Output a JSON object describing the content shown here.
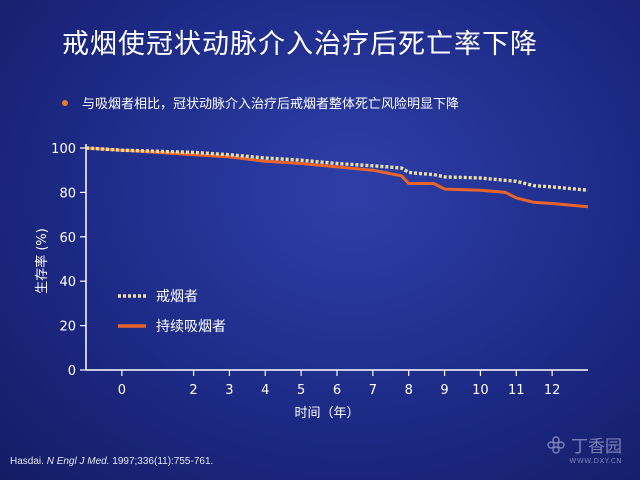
{
  "title": "戒烟使冠状动脉介入治疗后死亡率下降",
  "bullet": "与吸烟者相比，冠状动脉介入治疗后戒烟者整体死亡风险明显下降",
  "citation": {
    "author": "Hasdai.",
    "journal": "N Engl J Med.",
    "ref": "1997;336(11):755-761."
  },
  "watermark": {
    "name": "丁香园",
    "url": "WWW.DXY.CN"
  },
  "colors": {
    "quit": "#e9dfa8",
    "smoke": "#e8642c",
    "axis": "#ffffff"
  },
  "chart_data": {
    "type": "line",
    "xlabel": "时间（年）",
    "ylabel": "生存率 (%)",
    "xlim": [
      -1,
      13
    ],
    "ylim": [
      0,
      100
    ],
    "xticks": [
      0,
      2,
      3,
      4,
      5,
      6,
      7,
      8,
      9,
      10,
      11,
      12
    ],
    "xtick_positions": [
      0,
      2,
      3,
      4,
      5,
      6,
      7,
      8,
      9,
      10,
      11,
      12
    ],
    "yticks": [
      0,
      20,
      40,
      60,
      80,
      100
    ],
    "legend_position": "bottom-left",
    "series": [
      {
        "name": "戒烟者",
        "style": "dotted",
        "x": [
          -1,
          0,
          1,
          2,
          3,
          4,
          5,
          6,
          7,
          7.8,
          8,
          8.3,
          8.7,
          9,
          10,
          11,
          11.5,
          12,
          13
        ],
        "y": [
          100,
          99,
          98.5,
          98,
          97,
          95.5,
          94.5,
          93,
          92,
          91,
          89,
          88.5,
          88,
          87,
          86.5,
          85,
          83,
          82.5,
          81
        ]
      },
      {
        "name": "持续吸烟者",
        "style": "solid",
        "x": [
          -1,
          0,
          1,
          2,
          3,
          4,
          5,
          6,
          7,
          7.8,
          8,
          8.7,
          9,
          10,
          10.7,
          11,
          11.5,
          12,
          13
        ],
        "y": [
          100,
          99,
          98,
          97,
          96,
          94,
          93,
          91.5,
          90,
          87.5,
          84,
          84,
          81.5,
          81,
          80,
          77.5,
          75.5,
          75,
          73.5
        ]
      }
    ]
  }
}
